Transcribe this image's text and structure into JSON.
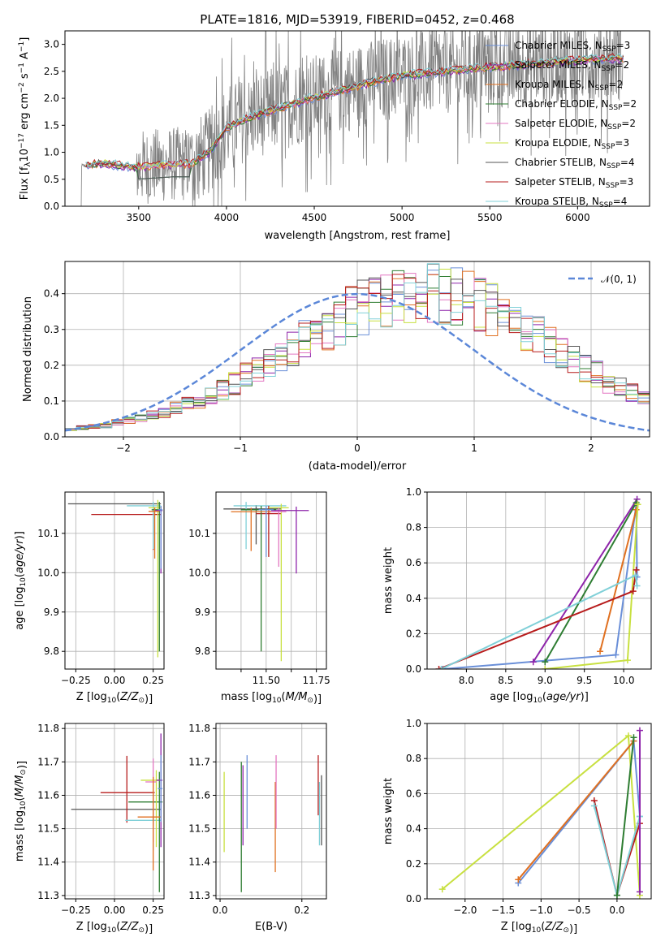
{
  "colors": {
    "Chabrier MILES": "#6a8fd8",
    "Salpeter MILES": "#8e24aa",
    "Kroupa MILES": "#e07020",
    "Chabrier ELODIE": "#2e7d32",
    "Salpeter ELODIE": "#e377c2",
    "Kroupa ELODIE": "#c8e040",
    "Chabrier STELIB": "#555555",
    "Salpeter STELIB": "#b71c1c",
    "Kroupa STELIB": "#80d0d8"
  },
  "chart_data": [
    {
      "id": "spectrum",
      "type": "line",
      "title": "PLATE=1816, MJD=53919, FIBERID=0452, z=0.468",
      "xlabel": "wavelength [Angstrom, rest frame]",
      "ylabel": "Flux [f_λ 10^-17 erg cm^-2 s^-1 A^-1]",
      "xlim": [
        3080,
        6410
      ],
      "ylim": [
        0,
        3.25
      ],
      "xticks": [
        3500,
        4000,
        4500,
        5000,
        5500,
        6000
      ],
      "yticks": [
        0.0,
        0.5,
        1.0,
        1.5,
        2.0,
        2.5,
        3.0
      ],
      "legend": {
        "position": "top-right",
        "entries": [
          {
            "label": "Chabrier MILES, N",
            "sub": "SSP",
            "suffix": "=3",
            "model": "Chabrier MILES"
          },
          {
            "label": "Salpeter MILES, N",
            "sub": "SSP",
            "suffix": "=2",
            "model": "Salpeter MILES"
          },
          {
            "label": "Kroupa MILES, N",
            "sub": "SSP",
            "suffix": "=2",
            "model": "Kroupa MILES"
          },
          {
            "label": "Chabrier ELODIE, N",
            "sub": "SSP",
            "suffix": "=2",
            "model": "Chabrier ELODIE"
          },
          {
            "label": "Salpeter ELODIE, N",
            "sub": "SSP",
            "suffix": "=2",
            "model": "Salpeter ELODIE"
          },
          {
            "label": "Kroupa ELODIE, N",
            "sub": "SSP",
            "suffix": "=3",
            "model": "Kroupa ELODIE"
          },
          {
            "label": "Chabrier STELIB, N",
            "sub": "SSP",
            "suffix": "=4",
            "model": "Chabrier STELIB"
          },
          {
            "label": "Salpeter STELIB, N",
            "sub": "SSP",
            "suffix": "=3",
            "model": "Salpeter STELIB"
          },
          {
            "label": "Kroupa STELIB, N",
            "sub": "SSP",
            "suffix": "=4",
            "model": "Kroupa STELIB"
          }
        ]
      },
      "model_envelope": {
        "wavelength": [
          3200,
          3300,
          3400,
          3500,
          3600,
          3700,
          3800,
          3900,
          4000,
          4100,
          4200,
          4300,
          4400,
          4500,
          4600,
          4700,
          4800,
          4900,
          5000,
          5100,
          5200,
          5300,
          5400,
          5500,
          5600,
          5700,
          5800,
          5900,
          6000,
          6100,
          6200
        ],
        "flux": [
          0.75,
          0.8,
          0.75,
          0.72,
          0.75,
          0.78,
          0.78,
          1.0,
          1.45,
          1.6,
          1.72,
          1.82,
          1.92,
          2.02,
          2.1,
          2.18,
          2.28,
          2.35,
          2.42,
          2.45,
          2.48,
          2.52,
          2.55,
          2.58,
          2.6,
          2.63,
          2.65,
          2.68,
          2.7,
          2.72,
          2.74
        ]
      }
    },
    {
      "id": "residuals",
      "type": "bar",
      "xlabel": "(data-model)/error",
      "ylabel": "Normed distribution",
      "xlim": [
        -2.5,
        2.5
      ],
      "ylim": [
        0,
        0.49
      ],
      "xticks": [
        -2,
        -1,
        0,
        1,
        2
      ],
      "yticks": [
        0.0,
        0.1,
        0.2,
        0.3,
        0.4
      ],
      "legend": {
        "position": "top-right",
        "label": "𝒩(0, 1)"
      },
      "bin_width": 0.1,
      "bin_start": -2.5,
      "base_values": [
        0.02,
        0.025,
        0.03,
        0.03,
        0.04,
        0.045,
        0.05,
        0.06,
        0.065,
        0.08,
        0.09,
        0.1,
        0.115,
        0.13,
        0.145,
        0.165,
        0.18,
        0.2,
        0.22,
        0.24,
        0.26,
        0.285,
        0.3,
        0.32,
        0.34,
        0.355,
        0.365,
        0.375,
        0.385,
        0.39,
        0.4,
        0.395,
        0.39,
        0.385,
        0.375,
        0.36,
        0.345,
        0.33,
        0.31,
        0.29,
        0.27,
        0.25,
        0.23,
        0.21,
        0.19,
        0.17,
        0.15,
        0.135,
        0.12,
        0.105
      ]
    },
    {
      "id": "age-vs-Z",
      "type": "scatter",
      "xlabel": "Z [log10(Z/Z⊙)]",
      "ylabel": "age  [log10(age/yr)]",
      "xlim": [
        -0.32,
        0.32
      ],
      "ylim": [
        9.755,
        10.205
      ],
      "xticks": [
        -0.25,
        0.0,
        0.25
      ],
      "xticklabels": [
        "−0.25",
        "0.00",
        "0.25"
      ],
      "yticks": [
        9.8,
        9.9,
        10.0,
        10.1
      ],
      "points": [
        {
          "model": "Chabrier STELIB",
          "x": 0.25,
          "y": 10.175,
          "xerr": [
            0.55,
            0.05
          ],
          "yerr": [
            0.08,
            0.0
          ]
        },
        {
          "model": "Salpeter STELIB",
          "x": 0.25,
          "y": 10.148,
          "xerr": [
            0.4,
            0.05
          ],
          "yerr": [
            0.09,
            0.01
          ]
        },
        {
          "model": "Kroupa STELIB",
          "x": 0.25,
          "y": 10.17,
          "xerr": [
            0.17,
            0.05
          ],
          "yerr": [
            0.11,
            0.01
          ]
        },
        {
          "model": "Kroupa ELODIE",
          "x": 0.28,
          "y": 10.165,
          "xerr": [
            0.06,
            0.02
          ],
          "yerr": [
            0.38,
            0.02
          ]
        },
        {
          "model": "Chabrier ELODIE",
          "x": 0.29,
          "y": 10.16,
          "xerr": [
            0.05,
            0.01
          ],
          "yerr": [
            0.36,
            0.02
          ]
        },
        {
          "model": "Salpeter MILES",
          "x": 0.3,
          "y": 10.158,
          "xerr": [
            0.04,
            0.01
          ],
          "yerr": [
            0.16,
            0.01
          ]
        },
        {
          "model": "Kroupa MILES",
          "x": 0.26,
          "y": 10.156,
          "xerr": [
            0.04,
            0.03
          ],
          "yerr": [
            0.12,
            0.01
          ]
        },
        {
          "model": "Chabrier MILES",
          "x": 0.3,
          "y": 10.16,
          "xerr": [
            0.02,
            0.01
          ],
          "yerr": [
            0.15,
            0.01
          ]
        }
      ]
    },
    {
      "id": "age-vs-mass",
      "type": "scatter",
      "xlabel": "mass [log10(M/M⊙)]",
      "ylabel": "",
      "xlim": [
        11.4,
        11.84
      ],
      "ylim": [
        9.755,
        10.205
      ],
      "xticks": [
        11.5,
        11.6,
        11.7,
        11.8
      ],
      "xticklabels": [
        "",
        "11.50",
        "",
        "11.75"
      ],
      "yticks": [
        9.8,
        9.9,
        10.0,
        10.1
      ],
      "points": [
        {
          "model": "Chabrier STELIB",
          "x": 11.56,
          "y": 10.162,
          "xerr": [
            0.13,
            0.1
          ],
          "yerr": [
            0.09,
            0.01
          ]
        },
        {
          "model": "Kroupa STELIB",
          "x": 11.52,
          "y": 10.17,
          "xerr": [
            0.05,
            0.16
          ],
          "yerr": [
            0.11,
            0.01
          ]
        },
        {
          "model": "Salpeter STELIB",
          "x": 11.61,
          "y": 10.15,
          "xerr": [
            0.05,
            0.05
          ],
          "yerr": [
            0.11,
            0.02
          ]
        },
        {
          "model": "Chabrier ELODIE",
          "x": 11.58,
          "y": 10.16,
          "xerr": [
            0.08,
            0.06
          ],
          "yerr": [
            0.36,
            0.01
          ]
        },
        {
          "model": "Kroupa ELODIE",
          "x": 11.66,
          "y": 10.165,
          "xerr": [
            0.05,
            0.03
          ],
          "yerr": [
            0.39,
            0.01
          ]
        },
        {
          "model": "Salpeter ELODIE",
          "x": 11.65,
          "y": 10.155,
          "xerr": [
            0.04,
            0.03
          ],
          "yerr": [
            0.14,
            0.01
          ]
        },
        {
          "model": "Salpeter MILES",
          "x": 11.72,
          "y": 10.158,
          "xerr": [
            0.1,
            0.05
          ],
          "yerr": [
            0.16,
            0.01
          ]
        },
        {
          "model": "Kroupa MILES",
          "x": 11.54,
          "y": 10.155,
          "xerr": [
            0.08,
            0.08
          ],
          "yerr": [
            0.1,
            0.01
          ]
        },
        {
          "model": "Chabrier MILES",
          "x": 11.6,
          "y": 10.16,
          "xerr": [
            0.03,
            0.03
          ],
          "yerr": [
            0.12,
            0.01
          ]
        }
      ]
    },
    {
      "id": "weight-vs-age",
      "type": "line",
      "xlabel": "age  [log10(age/yr)]",
      "ylabel": "mass weight",
      "xlim": [
        7.5,
        10.35
      ],
      "ylim": [
        0,
        1.0
      ],
      "xticks": [
        8.0,
        8.5,
        9.0,
        9.5,
        10.0
      ],
      "yticks": [
        0.0,
        0.2,
        0.4,
        0.6,
        0.8,
        1.0
      ],
      "series": [
        {
          "model": "Chabrier MILES",
          "x": [
            7.7,
            9.9,
            10.16,
            10.17
          ],
          "y": [
            0.0,
            0.08,
            0.93,
            0.52
          ]
        },
        {
          "model": "Salpeter MILES",
          "x": [
            8.85,
            10.17
          ],
          "y": [
            0.04,
            0.96
          ]
        },
        {
          "model": "Kroupa MILES",
          "x": [
            9.7,
            10.16
          ],
          "y": [
            0.1,
            0.9
          ]
        },
        {
          "model": "Chabrier ELODIE",
          "x": [
            9.0,
            10.16
          ],
          "y": [
            0.04,
            0.94
          ]
        },
        {
          "model": "Kroupa ELODIE",
          "x": [
            9.0,
            10.05,
            10.18
          ],
          "y": [
            0.0,
            0.05,
            0.93
          ]
        },
        {
          "model": "Salpeter STELIB",
          "x": [
            7.65,
            10.12,
            10.16
          ],
          "y": [
            0.0,
            0.44,
            0.56
          ]
        },
        {
          "model": "Kroupa STELIB",
          "x": [
            7.68,
            10.15,
            10.17
          ],
          "y": [
            0.0,
            0.53,
            0.47
          ]
        }
      ]
    },
    {
      "id": "mass-vs-Z",
      "type": "scatter",
      "xlabel": "Z [log10(Z/Z⊙)]",
      "ylabel": "mass [log10(M/M⊙)]",
      "xlim": [
        -0.32,
        0.32
      ],
      "ylim": [
        11.29,
        11.815
      ],
      "xticks": [
        -0.25,
        0.0,
        0.25
      ],
      "xticklabels": [
        "−0.25",
        "0.00",
        "0.25"
      ],
      "yticks": [
        11.3,
        11.4,
        11.5,
        11.6,
        11.7,
        11.8
      ],
      "points": [
        {
          "model": "Chabrier STELIB",
          "x": 0.25,
          "y": 11.558,
          "xerr": [
            0.53,
            0.05
          ],
          "yerr": [
            0.05,
            0.05
          ]
        },
        {
          "model": "Salpeter STELIB",
          "x": 0.08,
          "y": 11.608,
          "xerr": [
            0.17,
            0.18
          ],
          "yerr": [
            0.09,
            0.11
          ]
        },
        {
          "model": "Kroupa STELIB",
          "x": 0.25,
          "y": 11.525,
          "xerr": [
            0.18,
            0.05
          ],
          "yerr": [
            0.09,
            0.13
          ]
        },
        {
          "model": "Chabrier ELODIE",
          "x": 0.29,
          "y": 11.58,
          "xerr": [
            0.2,
            0.02
          ],
          "yerr": [
            0.27,
            0.09
          ]
        },
        {
          "model": "Kroupa ELODIE",
          "x": 0.27,
          "y": 11.645,
          "xerr": [
            0.1,
            0.03
          ],
          "yerr": [
            0.2,
            0.03
          ]
        },
        {
          "model": "Salpeter ELODIE",
          "x": 0.25,
          "y": 11.64,
          "xerr": [
            0.05,
            0.02
          ],
          "yerr": [
            0.18,
            0.07
          ]
        },
        {
          "model": "Salpeter MILES",
          "x": 0.3,
          "y": 11.645,
          "xerr": [
            0.03,
            0.01
          ],
          "yerr": [
            0.2,
            0.14
          ]
        },
        {
          "model": "Kroupa MILES",
          "x": 0.25,
          "y": 11.535,
          "xerr": [
            0.1,
            0.05
          ],
          "yerr": [
            0.16,
            0.12
          ]
        },
        {
          "model": "Chabrier MILES",
          "x": 0.3,
          "y": 11.62,
          "xerr": [
            0.02,
            0.01
          ],
          "yerr": [
            0.1,
            0.1
          ]
        }
      ]
    },
    {
      "id": "mass-vs-ebv",
      "type": "scatter",
      "xlabel": "E(B-V)",
      "ylabel": "",
      "xlim": [
        -0.01,
        0.26
      ],
      "ylim": [
        11.29,
        11.815
      ],
      "xticks": [
        0.0,
        0.2
      ],
      "xticklabels": [
        "0.0",
        "0.2"
      ],
      "yticks": [
        11.3,
        11.4,
        11.5,
        11.6,
        11.7,
        11.8
      ],
      "points": [
        {
          "model": "Kroupa ELODIE",
          "x": 0.01,
          "y": 11.55,
          "yerr": [
            0.12,
            0.12
          ]
        },
        {
          "model": "Chabrier ELODIE",
          "x": 0.052,
          "y": 11.51,
          "yerr": [
            0.2,
            0.19
          ]
        },
        {
          "model": "Salpeter MILES",
          "x": 0.056,
          "y": 11.57,
          "yerr": [
            0.12,
            0.12
          ]
        },
        {
          "model": "Chabrier MILES",
          "x": 0.066,
          "y": 11.58,
          "yerr": [
            0.08,
            0.14
          ]
        },
        {
          "model": "Kroupa MILES",
          "x": 0.135,
          "y": 11.51,
          "yerr": [
            0.14,
            0.13
          ]
        },
        {
          "model": "Salpeter ELODIE",
          "x": 0.137,
          "y": 11.6,
          "yerr": [
            0.1,
            0.12
          ]
        },
        {
          "model": "Salpeter STELIB",
          "x": 0.24,
          "y": 11.63,
          "yerr": [
            0.09,
            0.09
          ]
        },
        {
          "model": "Kroupa STELIB",
          "x": 0.243,
          "y": 11.53,
          "yerr": [
            0.08,
            0.11
          ]
        },
        {
          "model": "Chabrier STELIB",
          "x": 0.248,
          "y": 11.55,
          "yerr": [
            0.1,
            0.11
          ]
        }
      ]
    },
    {
      "id": "weight-vs-Z",
      "type": "line",
      "xlabel": "Z [log10(Z/Z⊙)]",
      "ylabel": "mass weight",
      "xlim": [
        -2.5,
        0.45
      ],
      "ylim": [
        0,
        1.0
      ],
      "xticks": [
        -2.0,
        -1.5,
        -1.0,
        -0.5,
        0.0
      ],
      "xticklabels": [
        "−2.0",
        "−1.5",
        "−1.0",
        "−0.5",
        "0.0"
      ],
      "yticks": [
        0.0,
        0.2,
        0.4,
        0.6,
        0.8,
        1.0
      ],
      "series": [
        {
          "model": "Kroupa ELODIE",
          "x": [
            -2.3,
            0.15,
            0.3
          ],
          "y": [
            0.055,
            0.93,
            0.02
          ]
        },
        {
          "model": "Chabrier MILES",
          "x": [
            -1.3,
            0.22,
            0.3
          ],
          "y": [
            0.09,
            0.9,
            0.47
          ]
        },
        {
          "model": "Kroupa MILES",
          "x": [
            -1.3,
            0.22
          ],
          "y": [
            0.11,
            0.9
          ]
        },
        {
          "model": "Salpeter STELIB",
          "x": [
            -0.3,
            0.0,
            0.3
          ],
          "y": [
            0.56,
            0.02,
            0.43
          ]
        },
        {
          "model": "Kroupa STELIB",
          "x": [
            -0.3,
            0.0,
            0.3
          ],
          "y": [
            0.53,
            0.02,
            0.47
          ]
        },
        {
          "model": "Chabrier ELODIE",
          "x": [
            0.0,
            0.22
          ],
          "y": [
            0.02,
            0.92
          ]
        },
        {
          "model": "Salpeter MILES",
          "x": [
            0.3,
            0.3
          ],
          "y": [
            0.96,
            0.04
          ]
        }
      ]
    }
  ]
}
